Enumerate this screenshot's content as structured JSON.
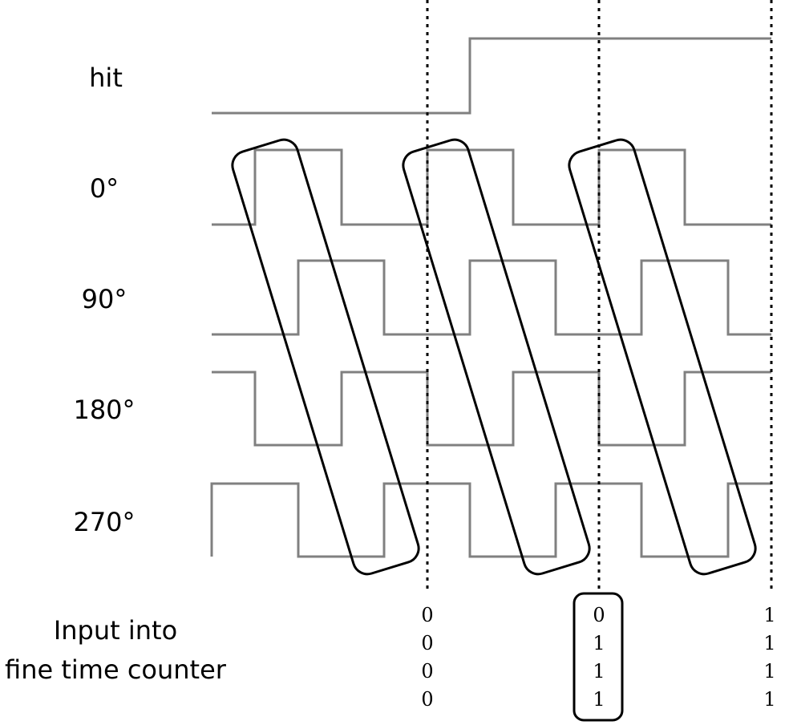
{
  "signals": [
    {
      "label": "hit"
    },
    {
      "label": "0°"
    },
    {
      "label": "90°"
    },
    {
      "label": "180°"
    },
    {
      "label": "270°"
    }
  ],
  "input_caption": {
    "line1": "Input into",
    "line2": "fine time counter"
  },
  "samples": [
    {
      "bits": [
        "0",
        "0",
        "0",
        "0"
      ]
    },
    {
      "bits": [
        "0",
        "1",
        "1",
        "1"
      ],
      "highlighted": true
    },
    {
      "bits": [
        "1",
        "1",
        "1",
        "1"
      ]
    }
  ]
}
